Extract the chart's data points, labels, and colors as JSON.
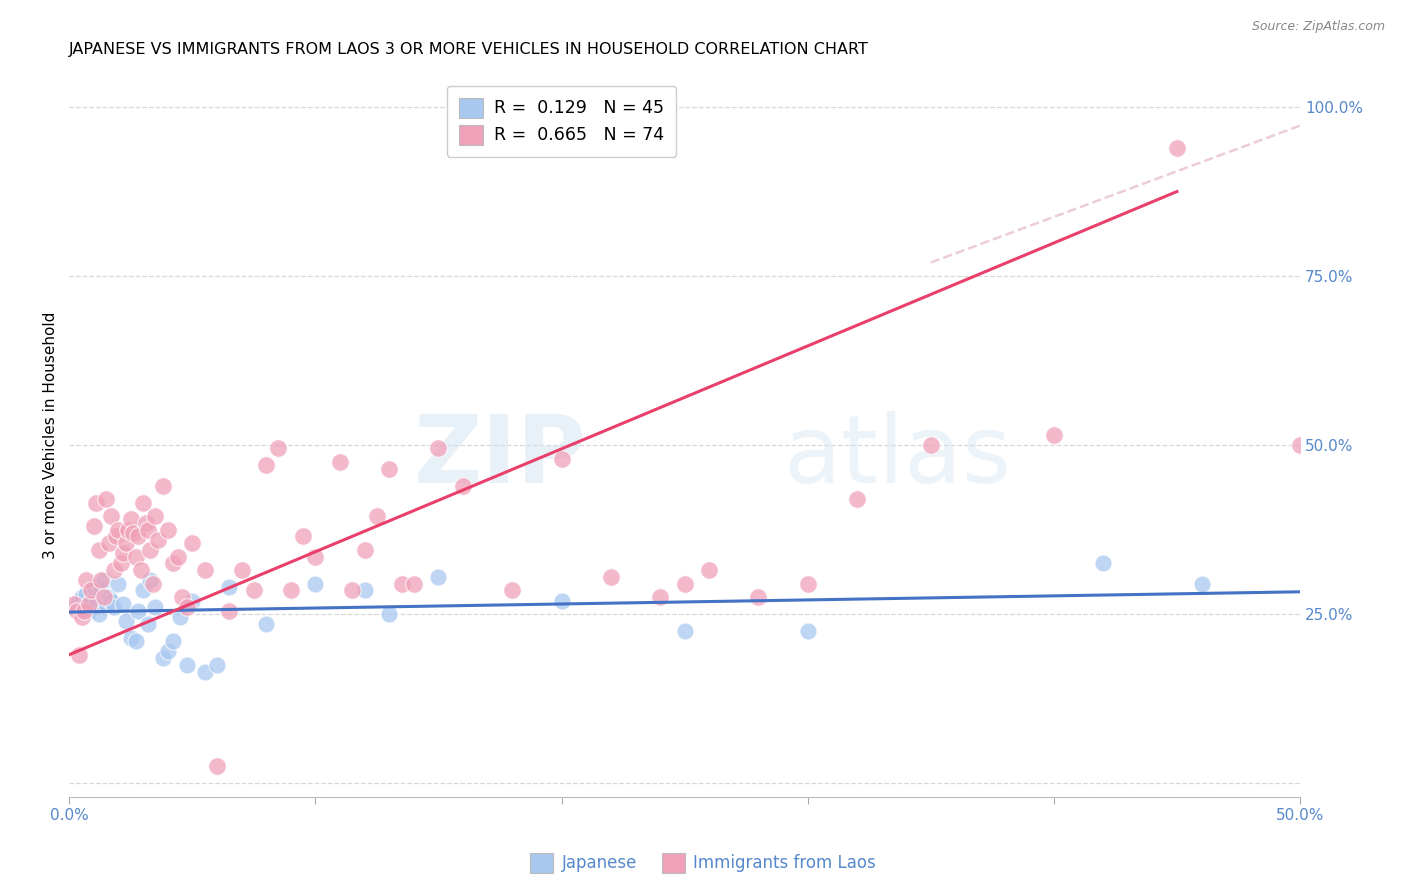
{
  "title": "JAPANESE VS IMMIGRANTS FROM LAOS 3 OR MORE VEHICLES IN HOUSEHOLD CORRELATION CHART",
  "source": "Source: ZipAtlas.com",
  "ylabel": "3 or more Vehicles in Household",
  "xlim": [
    0.0,
    0.5
  ],
  "ylim": [
    -0.02,
    1.05
  ],
  "watermark_zip": "ZIP",
  "watermark_atlas": "atlas",
  "japanese_color": "#a8c8f0",
  "laos_color": "#f0a0b8",
  "japanese_line_color": "#4472c4",
  "laos_line_color": "#e8406a",
  "laos_dashed_color": "#e8c0cc",
  "background_color": "#ffffff",
  "grid_color": "#d8d8d8",
  "legend_r1": "R =  0.129   N = 45",
  "legend_r2": "R =  0.665   N = 74",
  "tick_color": "#5588cc",
  "title_fontsize": 11.5,
  "axis_label_fontsize": 11,
  "tick_fontsize": 11,
  "source_fontsize": 9,
  "japanese_scatter": [
    [
      0.003,
      0.265
    ],
    [
      0.004,
      0.27
    ],
    [
      0.005,
      0.275
    ],
    [
      0.006,
      0.26
    ],
    [
      0.007,
      0.28
    ],
    [
      0.008,
      0.255
    ],
    [
      0.009,
      0.27
    ],
    [
      0.01,
      0.29
    ],
    [
      0.011,
      0.265
    ],
    [
      0.012,
      0.25
    ],
    [
      0.013,
      0.285
    ],
    [
      0.014,
      0.3
    ],
    [
      0.015,
      0.265
    ],
    [
      0.016,
      0.275
    ],
    [
      0.017,
      0.27
    ],
    [
      0.018,
      0.26
    ],
    [
      0.02,
      0.295
    ],
    [
      0.022,
      0.265
    ],
    [
      0.023,
      0.24
    ],
    [
      0.025,
      0.215
    ],
    [
      0.027,
      0.21
    ],
    [
      0.028,
      0.255
    ],
    [
      0.03,
      0.285
    ],
    [
      0.032,
      0.235
    ],
    [
      0.033,
      0.3
    ],
    [
      0.035,
      0.26
    ],
    [
      0.038,
      0.185
    ],
    [
      0.04,
      0.195
    ],
    [
      0.042,
      0.21
    ],
    [
      0.045,
      0.245
    ],
    [
      0.048,
      0.175
    ],
    [
      0.05,
      0.27
    ],
    [
      0.055,
      0.165
    ],
    [
      0.06,
      0.175
    ],
    [
      0.065,
      0.29
    ],
    [
      0.08,
      0.235
    ],
    [
      0.1,
      0.295
    ],
    [
      0.12,
      0.285
    ],
    [
      0.13,
      0.25
    ],
    [
      0.15,
      0.305
    ],
    [
      0.2,
      0.27
    ],
    [
      0.25,
      0.225
    ],
    [
      0.3,
      0.225
    ],
    [
      0.42,
      0.325
    ],
    [
      0.46,
      0.295
    ]
  ],
  "laos_scatter": [
    [
      0.002,
      0.265
    ],
    [
      0.003,
      0.255
    ],
    [
      0.004,
      0.19
    ],
    [
      0.005,
      0.245
    ],
    [
      0.006,
      0.255
    ],
    [
      0.007,
      0.3
    ],
    [
      0.008,
      0.265
    ],
    [
      0.009,
      0.285
    ],
    [
      0.01,
      0.38
    ],
    [
      0.011,
      0.415
    ],
    [
      0.012,
      0.345
    ],
    [
      0.013,
      0.3
    ],
    [
      0.014,
      0.275
    ],
    [
      0.015,
      0.42
    ],
    [
      0.016,
      0.355
    ],
    [
      0.017,
      0.395
    ],
    [
      0.018,
      0.315
    ],
    [
      0.019,
      0.365
    ],
    [
      0.02,
      0.375
    ],
    [
      0.021,
      0.325
    ],
    [
      0.022,
      0.34
    ],
    [
      0.023,
      0.355
    ],
    [
      0.024,
      0.375
    ],
    [
      0.025,
      0.39
    ],
    [
      0.026,
      0.37
    ],
    [
      0.027,
      0.335
    ],
    [
      0.028,
      0.365
    ],
    [
      0.029,
      0.315
    ],
    [
      0.03,
      0.415
    ],
    [
      0.031,
      0.385
    ],
    [
      0.032,
      0.375
    ],
    [
      0.033,
      0.345
    ],
    [
      0.034,
      0.295
    ],
    [
      0.035,
      0.395
    ],
    [
      0.036,
      0.36
    ],
    [
      0.038,
      0.44
    ],
    [
      0.04,
      0.375
    ],
    [
      0.042,
      0.325
    ],
    [
      0.044,
      0.335
    ],
    [
      0.046,
      0.275
    ],
    [
      0.048,
      0.26
    ],
    [
      0.05,
      0.355
    ],
    [
      0.055,
      0.315
    ],
    [
      0.06,
      0.025
    ],
    [
      0.065,
      0.255
    ],
    [
      0.07,
      0.315
    ],
    [
      0.075,
      0.285
    ],
    [
      0.08,
      0.47
    ],
    [
      0.085,
      0.495
    ],
    [
      0.09,
      0.285
    ],
    [
      0.095,
      0.365
    ],
    [
      0.1,
      0.335
    ],
    [
      0.11,
      0.475
    ],
    [
      0.115,
      0.285
    ],
    [
      0.12,
      0.345
    ],
    [
      0.125,
      0.395
    ],
    [
      0.13,
      0.465
    ],
    [
      0.135,
      0.295
    ],
    [
      0.14,
      0.295
    ],
    [
      0.15,
      0.495
    ],
    [
      0.16,
      0.44
    ],
    [
      0.18,
      0.285
    ],
    [
      0.2,
      0.48
    ],
    [
      0.22,
      0.305
    ],
    [
      0.24,
      0.275
    ],
    [
      0.25,
      0.295
    ],
    [
      0.26,
      0.315
    ],
    [
      0.28,
      0.275
    ],
    [
      0.3,
      0.295
    ],
    [
      0.32,
      0.42
    ],
    [
      0.35,
      0.5
    ],
    [
      0.4,
      0.515
    ],
    [
      0.45,
      0.94
    ],
    [
      0.5,
      0.5
    ]
  ],
  "jap_trend": [
    0.0,
    0.5,
    0.253,
    0.283
  ],
  "laos_trend_solid": [
    0.0,
    0.45,
    0.19,
    0.875
  ],
  "laos_trend_dashed": [
    0.35,
    0.55,
    0.77,
    1.04
  ]
}
